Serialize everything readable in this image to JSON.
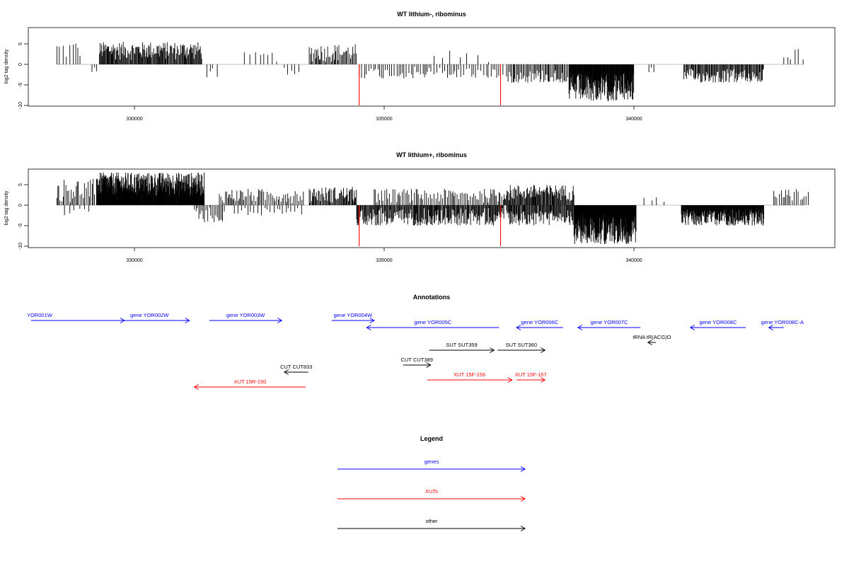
{
  "chart_data": [
    {
      "type": "bar",
      "title": "WT lithium-, ribominus",
      "ylabel": "log2 tag density",
      "xlabel": "",
      "xlim": [
        328000,
        343800
      ],
      "ylim": [
        -10,
        9
      ],
      "xticks": [
        330000,
        335000,
        340000
      ],
      "xtick_labels": [
        "330000",
        "335000",
        "340000"
      ],
      "yticks": [
        -10,
        -5,
        0,
        5
      ],
      "ytick_labels": [
        "-10",
        "-5",
        "0",
        "5"
      ],
      "grid": false,
      "density_regions": [
        {
          "from": 328450,
          "to": 328950,
          "min": 0.5,
          "max": 6.0,
          "step": 55,
          "dir": 1
        },
        {
          "from": 329150,
          "to": 329250,
          "min": 0.5,
          "max": 2.0,
          "step": 40,
          "dir": -1
        },
        {
          "from": 329300,
          "to": 331350,
          "min": 1.0,
          "max": 5.5,
          "step": 14,
          "dir": 1
        },
        {
          "from": 331450,
          "to": 331700,
          "min": 0.5,
          "max": 3.5,
          "step": 70,
          "dir": -1
        },
        {
          "from": 332200,
          "to": 332900,
          "min": 0.5,
          "max": 3.0,
          "step": 90,
          "dir": 1
        },
        {
          "from": 333000,
          "to": 333400,
          "min": 0.5,
          "max": 2.5,
          "step": 90,
          "dir": -1
        },
        {
          "from": 333500,
          "to": 334450,
          "min": 0.5,
          "max": 5.0,
          "step": 22,
          "dir": 1
        },
        {
          "from": 334500,
          "to": 337400,
          "min": 0.5,
          "max": 3.5,
          "step": 45,
          "dir": -1
        },
        {
          "from": 336000,
          "to": 337200,
          "min": 0.5,
          "max": 3.5,
          "step": 180,
          "dir": 1
        },
        {
          "from": 337450,
          "to": 338700,
          "min": 1.0,
          "max": 4.5,
          "step": 22,
          "dir": -1
        },
        {
          "from": 338700,
          "to": 340000,
          "min": 2.0,
          "max": 9.0,
          "step": 8,
          "dir": -1
        },
        {
          "from": 340300,
          "to": 340400,
          "min": 0.5,
          "max": 2.0,
          "step": 50,
          "dir": -1
        },
        {
          "from": 341000,
          "to": 342600,
          "min": 1.0,
          "max": 4.5,
          "step": 16,
          "dir": -1
        },
        {
          "from": 343000,
          "to": 343400,
          "min": 1.0,
          "max": 4.0,
          "step": 80,
          "dir": 1
        }
      ],
      "highlight_bars": [
        {
          "x": 334500,
          "value": -10,
          "color": "#ff0000"
        },
        {
          "x": 337330,
          "value": -10,
          "color": "#ff0000"
        }
      ]
    },
    {
      "type": "bar",
      "title": "WT lithium+, ribominus",
      "ylabel": "log2 tag density",
      "xlabel": "",
      "xlim": [
        328000,
        343800
      ],
      "ylim": [
        -10,
        9
      ],
      "xticks": [
        330000,
        335000,
        340000
      ],
      "xtick_labels": [
        "330000",
        "335000",
        "340000"
      ],
      "yticks": [
        -10,
        -5,
        0,
        5
      ],
      "ytick_labels": [
        "-10",
        "-5",
        "0",
        "5"
      ],
      "grid": false,
      "density_regions": [
        {
          "from": 328450,
          "to": 329250,
          "min": 0.5,
          "max": 6.5,
          "step": 28,
          "dir": 1
        },
        {
          "from": 328600,
          "to": 329100,
          "min": 0.5,
          "max": 2.5,
          "step": 90,
          "dir": -1
        },
        {
          "from": 329250,
          "to": 331400,
          "min": 2.0,
          "max": 8.0,
          "step": 7,
          "dir": 1
        },
        {
          "from": 331200,
          "to": 331800,
          "min": 0.5,
          "max": 4.5,
          "step": 28,
          "dir": -1
        },
        {
          "from": 331700,
          "to": 333400,
          "min": 0.5,
          "max": 4.0,
          "step": 28,
          "dir": 1
        },
        {
          "from": 332000,
          "to": 333400,
          "min": 0.5,
          "max": 2.5,
          "step": 60,
          "dir": -1
        },
        {
          "from": 333500,
          "to": 334450,
          "min": 0.5,
          "max": 4.5,
          "step": 16,
          "dir": 1
        },
        {
          "from": 334450,
          "to": 337400,
          "min": 0.5,
          "max": 5.0,
          "step": 14,
          "dir": -1
        },
        {
          "from": 334800,
          "to": 337400,
          "min": 0.5,
          "max": 4.0,
          "step": 30,
          "dir": 1
        },
        {
          "from": 337400,
          "to": 338800,
          "min": 1.0,
          "max": 5.0,
          "step": 14,
          "dir": 1
        },
        {
          "from": 337450,
          "to": 338800,
          "min": 1.0,
          "max": 5.0,
          "step": 14,
          "dir": -1
        },
        {
          "from": 338800,
          "to": 340050,
          "min": 2.0,
          "max": 9.5,
          "step": 6,
          "dir": -1
        },
        {
          "from": 340200,
          "to": 340700,
          "min": 0.5,
          "max": 2.0,
          "step": 120,
          "dir": 1
        },
        {
          "from": 340950,
          "to": 342600,
          "min": 1.0,
          "max": 5.0,
          "step": 8,
          "dir": -1
        },
        {
          "from": 342800,
          "to": 343500,
          "min": 1.0,
          "max": 4.0,
          "step": 40,
          "dir": 1
        }
      ],
      "highlight_bars": [
        {
          "x": 334500,
          "value": -10,
          "color": "#ff0000"
        },
        {
          "x": 337330,
          "value": -10,
          "color": "#ff0000"
        }
      ]
    }
  ],
  "annotations": {
    "title": "Annotations",
    "features": [
      {
        "label": "YOR001W",
        "start": 327930,
        "end": 329800,
        "strand": "+",
        "color": "#0000ff",
        "row": 0
      },
      {
        "label": "gene YOR002W",
        "start": 329500,
        "end": 331100,
        "strand": "+",
        "color": "#0000ff",
        "row": 0
      },
      {
        "label": "gene YOR003W",
        "start": 331500,
        "end": 332950,
        "strand": "+",
        "color": "#0000ff",
        "row": 0
      },
      {
        "label": "gene YOR004W",
        "start": 333950,
        "end": 334800,
        "strand": "+",
        "color": "#0000ff",
        "row": 0
      },
      {
        "label": "gene YOR005C",
        "start": 334650,
        "end": 337300,
        "strand": "-",
        "color": "#0000ff",
        "row": 1
      },
      {
        "label": "gene YOR006C",
        "start": 337650,
        "end": 338580,
        "strand": "-",
        "color": "#0000ff",
        "row": 1
      },
      {
        "label": "gene YOR007C",
        "start": 338880,
        "end": 340130,
        "strand": "-",
        "color": "#0000ff",
        "row": 1
      },
      {
        "label": "gene YOR008C",
        "start": 341130,
        "end": 342240,
        "strand": "-",
        "color": "#0000ff",
        "row": 1
      },
      {
        "label": "gene YOR008C-A",
        "start": 342700,
        "end": 343000,
        "strand": "-",
        "color": "#0000ff",
        "row": 1
      },
      {
        "label": "tRNA tR(ACG)O",
        "start": 340280,
        "end": 340440,
        "strand": "-",
        "color": "#000000",
        "row": 2
      },
      {
        "label": "SUT SUT359",
        "start": 335900,
        "end": 337200,
        "strand": "+",
        "color": "#000000",
        "row": 3
      },
      {
        "label": "SUT SUT360",
        "start": 337270,
        "end": 338220,
        "strand": "+",
        "color": "#000000",
        "row": 3
      },
      {
        "label": "CUT CUT389",
        "start": 335380,
        "end": 335930,
        "strand": "+",
        "color": "#000000",
        "row": 4
      },
      {
        "label": "CUT CUT833",
        "start": 333000,
        "end": 333480,
        "strand": "-",
        "color": "#000000",
        "row": 5
      },
      {
        "label": "XUT 15F-156",
        "start": 335860,
        "end": 337560,
        "strand": "+",
        "color": "#ff0000",
        "row": 6
      },
      {
        "label": "XUT 15F-157",
        "start": 337650,
        "end": 338220,
        "strand": "+",
        "color": "#ff0000",
        "row": 6
      },
      {
        "label": "XUT 15R-150",
        "start": 331200,
        "end": 333430,
        "strand": "-",
        "color": "#ff0000",
        "row": 7
      }
    ]
  },
  "legend": {
    "title": "Legend",
    "items": [
      {
        "label": "genes",
        "color": "#0000ff"
      },
      {
        "label": "XUTs",
        "color": "#ff0000"
      },
      {
        "label": "other",
        "color": "#000000"
      }
    ]
  }
}
